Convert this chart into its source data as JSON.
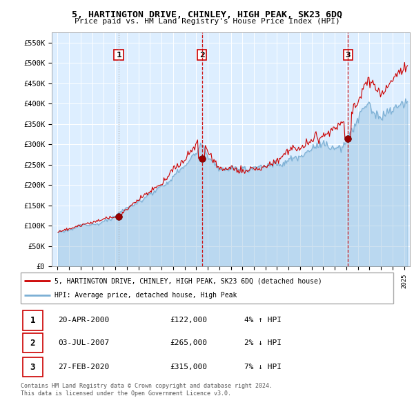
{
  "title": "5, HARTINGTON DRIVE, CHINLEY, HIGH PEAK, SK23 6DQ",
  "subtitle": "Price paid vs. HM Land Registry's House Price Index (HPI)",
  "legend_line1": "5, HARTINGTON DRIVE, CHINLEY, HIGH PEAK, SK23 6DQ (detached house)",
  "legend_line2": "HPI: Average price, detached house, High Peak",
  "table": [
    {
      "num": "1",
      "date": "20-APR-2000",
      "price": "£122,000",
      "hpi": "4% ↑ HPI"
    },
    {
      "num": "2",
      "date": "03-JUL-2007",
      "price": "£265,000",
      "hpi": "2% ↓ HPI"
    },
    {
      "num": "3",
      "date": "27-FEB-2020",
      "price": "£315,000",
      "hpi": "7% ↓ HPI"
    }
  ],
  "footer1": "Contains HM Land Registry data © Crown copyright and database right 2024.",
  "footer2": "This data is licensed under the Open Government Licence v3.0.",
  "sale_dates": [
    2000.3,
    2007.5,
    2020.15
  ],
  "sale_prices": [
    122000,
    265000,
    315000
  ],
  "sale_labels": [
    "1",
    "2",
    "3"
  ],
  "hpi_color": "#7bafd4",
  "price_color": "#cc0000",
  "vline_color_dashed": "#cc0000",
  "vline_color_dotted": "#999999",
  "background_color": "#ffffff",
  "chart_bg_color": "#ddeeff",
  "grid_color": "#ffffff",
  "ylim": [
    0,
    575000
  ],
  "xlim_start": 1994.5,
  "xlim_end": 2025.5
}
